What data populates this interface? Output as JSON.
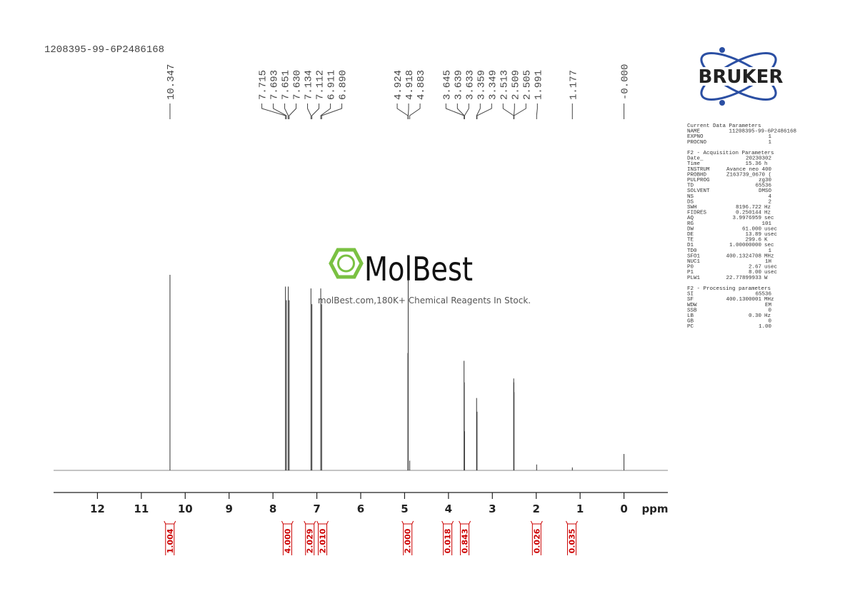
{
  "chart_data": {
    "type": "nmr",
    "title": "1208395-99-6P2486168",
    "x_label": "ppm",
    "xlim": [
      13,
      -1
    ],
    "xticks": [
      12,
      11,
      10,
      9,
      8,
      7,
      6,
      5,
      4,
      3,
      2,
      1,
      0
    ],
    "ylim": [
      0,
      100
    ],
    "color": "#333333",
    "peaks": {
      "x": [
        10.347,
        7.715,
        7.693,
        7.651,
        7.63,
        7.134,
        7.112,
        6.911,
        6.89,
        4.924,
        4.918,
        4.883,
        3.645,
        3.639,
        3.633,
        3.359,
        3.349,
        2.513,
        2.509,
        2.505,
        1.991,
        1.177,
        0.0
      ],
      "x_labels": [
        "10.347",
        "7.715",
        "7.693",
        "7.651",
        "7.630",
        "7.134",
        "7.112",
        "6.911",
        "6.890",
        "4.924",
        "4.918",
        "4.883",
        "3.645",
        "3.639",
        "3.633",
        "3.359",
        "3.349",
        "2.513",
        "2.509",
        "2.505",
        "1.991",
        "1.177",
        "-0.000"
      ],
      "values": [
        100,
        94,
        87,
        94,
        87,
        93,
        85,
        93,
        85,
        60,
        98,
        5,
        56,
        45,
        20,
        37,
        30,
        47,
        45,
        40,
        3,
        1.5,
        8.4
      ]
    },
    "integrals": {
      "color": "#cc0000",
      "x": [
        10.35,
        7.67,
        7.16,
        6.87,
        4.93,
        4.02,
        3.63,
        1.99,
        1.19
      ],
      "values": [
        1.004,
        4.0,
        2.029,
        2.01,
        2.0,
        0.018,
        0.843,
        0.026,
        0.035
      ],
      "value_labels": [
        "1.004",
        "4.000",
        "2.029",
        "2.010",
        "2.000",
        "0.018",
        "0.843",
        "0.026",
        "0.035"
      ]
    }
  },
  "logo": {
    "text": "BRUKER"
  },
  "watermark": {
    "brand": "MolBest",
    "tagline": "molBest.com,180K+ Chemical Reagents In Stock."
  },
  "parameters": [
    {
      "title": "Current Data Parameters",
      "rows": [
        [
          "NAME",
          "11208395-99-6P2486168"
        ],
        [
          "EXPNO",
          "1"
        ],
        [
          "PROCNO",
          "1"
        ]
      ]
    },
    {
      "title": "F2 - Acquisition Parameters",
      "rows": [
        [
          "Date_",
          "20230302"
        ],
        [
          "Time",
          "15.36",
          "h"
        ],
        [
          "INSTRUM",
          "Avance neo 400"
        ],
        [
          "PROBHD",
          "Z163739_0670 ("
        ],
        [
          "PULPROG",
          "zg30"
        ],
        [
          "TD",
          "65536"
        ],
        [
          "SOLVENT",
          "DMSO"
        ],
        [
          "NS",
          "4"
        ],
        [
          "DS",
          "2"
        ],
        [
          "SWH",
          "8196.722",
          "Hz"
        ],
        [
          "FIDRES",
          "0.250144",
          "Hz"
        ],
        [
          "AQ",
          "3.9976959",
          "sec"
        ],
        [
          "RG",
          "101"
        ],
        [
          "DW",
          "61.000",
          "usec"
        ],
        [
          "DE",
          "13.89",
          "usec"
        ],
        [
          "TE",
          "299.6",
          "K"
        ],
        [
          "D1",
          "1.00000000",
          "sec"
        ],
        [
          "TD0",
          "1"
        ],
        [
          "SFO1",
          "400.1324708",
          "MHz"
        ],
        [
          "NUC1",
          "1H"
        ],
        [
          "P0",
          "2.67",
          "usec"
        ],
        [
          "P1",
          "8.00",
          "usec"
        ],
        [
          "PLW1",
          "22.77899933",
          "W"
        ]
      ]
    },
    {
      "title": "F2 - Processing parameters",
      "rows": [
        [
          "SI",
          "65536"
        ],
        [
          "SF",
          "400.1300001",
          "MHz"
        ],
        [
          "WDW",
          "EM"
        ],
        [
          "SSB",
          "0"
        ],
        [
          "LB",
          "0.30",
          "Hz"
        ],
        [
          "GB",
          "0"
        ],
        [
          "PC",
          "1.00"
        ]
      ]
    }
  ]
}
